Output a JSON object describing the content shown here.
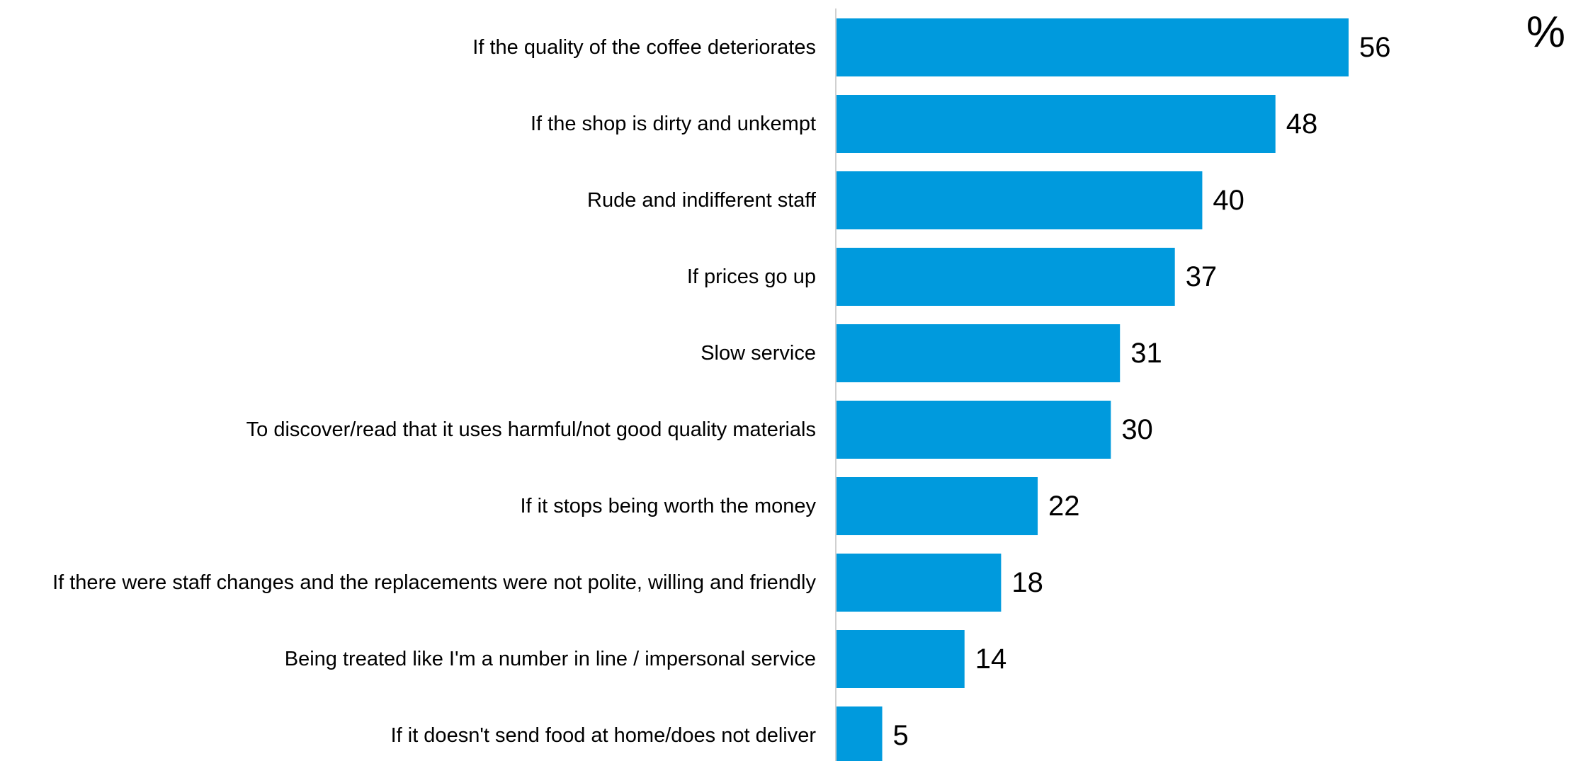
{
  "chart_data": {
    "type": "bar",
    "orientation": "horizontal",
    "unit": "%",
    "categories": [
      "If the quality of the coffee deteriorates",
      "If the shop is dirty and unkempt",
      "Rude and indifferent staff",
      "If prices go up",
      "Slow service",
      "To discover/read that it uses harmful/not good quality materials",
      "If it stops being worth the money",
      "If there were staff changes and the replacements were not polite, willing and friendly",
      "Being treated like I'm a number in line / impersonal service",
      "If it doesn't send food at home/does not deliver"
    ],
    "values": [
      56,
      48,
      40,
      37,
      31,
      30,
      22,
      18,
      14,
      5
    ],
    "xlim": [
      0,
      60
    ],
    "grid": false,
    "legend": "none",
    "bar_color": "#009ADD",
    "axis_color": "#D0D0D0"
  }
}
